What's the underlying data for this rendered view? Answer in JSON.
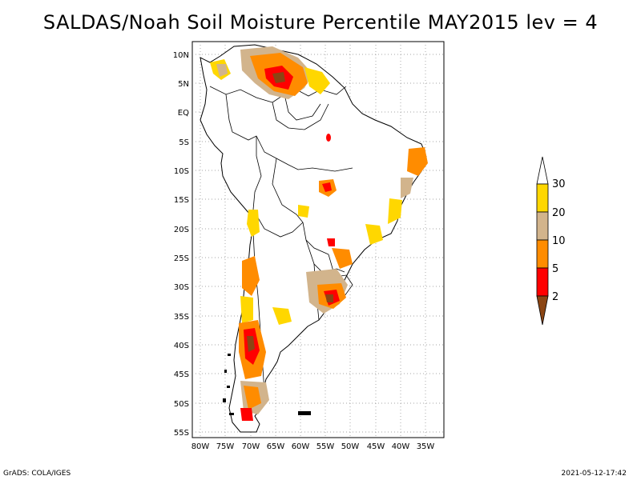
{
  "title": "SALDAS/Noah Soil Moisture Percentile MAY2015 lev = 4",
  "map": {
    "lat_labels": [
      "10N",
      "5N",
      "EQ",
      "5S",
      "10S",
      "15S",
      "20S",
      "25S",
      "30S",
      "35S",
      "40S",
      "45S",
      "50S",
      "55S"
    ],
    "lon_labels": [
      "80W",
      "75W",
      "70W",
      "65W",
      "60W",
      "55W",
      "50W",
      "45W",
      "40W",
      "35W"
    ],
    "extent": {
      "lon": [
        -81,
        -32
      ],
      "lat": [
        -56,
        12
      ]
    },
    "grid": true
  },
  "colorbar": {
    "labels": [
      "30",
      "20",
      "10",
      "5",
      "2"
    ],
    "colors": {
      "above30": "#ffffff",
      "20-30": "#ffd700",
      "10-20": "#d2b48c",
      "5-10": "#ff8c00",
      "2-5": "#ff0000",
      "below2": "#8b4513"
    }
  },
  "footer": {
    "left": "GrADS: COLA/IGES",
    "right": "2021-05-12-17:42"
  }
}
